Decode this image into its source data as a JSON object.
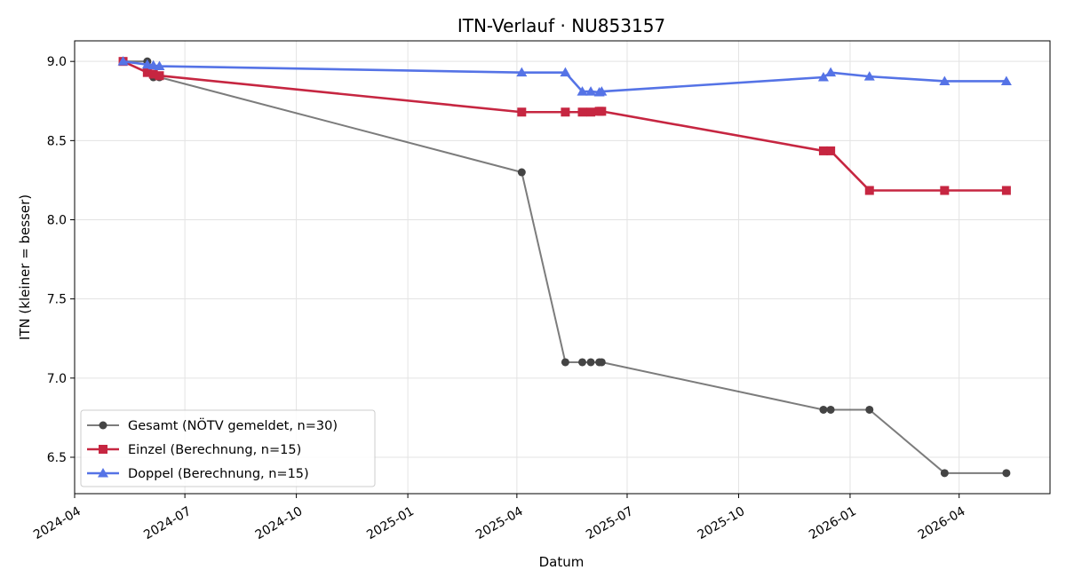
{
  "chart_data": {
    "type": "line",
    "title": "ITN-Verlauf · NU853157",
    "xlabel": "Datum",
    "ylabel": "ITN  (kleiner = besser)",
    "xlim": [
      "2024-04-01",
      "2026-06-15"
    ],
    "ylim": [
      6.27,
      9.13
    ],
    "x_ticks": [
      "2024-04",
      "2024-07",
      "2024-10",
      "2025-01",
      "2025-04",
      "2025-07",
      "2025-10",
      "2026-01",
      "2026-04"
    ],
    "y_ticks": [
      6.5,
      7.0,
      7.5,
      8.0,
      8.5,
      9.0
    ],
    "grid": true,
    "legend_position": "lower-left",
    "series": [
      {
        "name": "Gesamt (NÖTV gemeldet, n=30)",
        "color": "#444444",
        "marker": "circle",
        "points": [
          {
            "x": "2024-05-11",
            "y": 9.0
          },
          {
            "x": "2024-05-31",
            "y": 9.0
          },
          {
            "x": "2024-06-05",
            "y": 8.9
          },
          {
            "x": "2024-06-10",
            "y": 8.9
          },
          {
            "x": "2025-04-05",
            "y": 8.3
          },
          {
            "x": "2025-05-11",
            "y": 7.1
          },
          {
            "x": "2025-05-25",
            "y": 7.1
          },
          {
            "x": "2025-06-01",
            "y": 7.1
          },
          {
            "x": "2025-06-08",
            "y": 7.1
          },
          {
            "x": "2025-06-10",
            "y": 7.1
          },
          {
            "x": "2025-12-10",
            "y": 6.8
          },
          {
            "x": "2025-12-16",
            "y": 6.8
          },
          {
            "x": "2026-01-17",
            "y": 6.8
          },
          {
            "x": "2026-03-20",
            "y": 6.4
          },
          {
            "x": "2026-05-10",
            "y": 6.4
          }
        ]
      },
      {
        "name": "Einzel (Berechnung, n=15)",
        "color": "#c62641",
        "marker": "square",
        "points": [
          {
            "x": "2024-05-11",
            "y": 9.0
          },
          {
            "x": "2024-05-31",
            "y": 8.93
          },
          {
            "x": "2024-06-05",
            "y": 8.92
          },
          {
            "x": "2024-06-10",
            "y": 8.91
          },
          {
            "x": "2025-04-05",
            "y": 8.68
          },
          {
            "x": "2025-05-11",
            "y": 8.68
          },
          {
            "x": "2025-05-25",
            "y": 8.68
          },
          {
            "x": "2025-06-01",
            "y": 8.68
          },
          {
            "x": "2025-06-08",
            "y": 8.685
          },
          {
            "x": "2025-06-10",
            "y": 8.685
          },
          {
            "x": "2025-12-10",
            "y": 8.435
          },
          {
            "x": "2025-12-16",
            "y": 8.435
          },
          {
            "x": "2026-01-17",
            "y": 8.185
          },
          {
            "x": "2026-03-20",
            "y": 8.185
          },
          {
            "x": "2026-05-10",
            "y": 8.185
          }
        ]
      },
      {
        "name": "Doppel (Berechnung, n=15)",
        "color": "#5573e6",
        "marker": "triangle",
        "points": [
          {
            "x": "2024-05-11",
            "y": 9.0
          },
          {
            "x": "2024-05-31",
            "y": 8.98
          },
          {
            "x": "2024-06-05",
            "y": 8.975
          },
          {
            "x": "2024-06-10",
            "y": 8.97
          },
          {
            "x": "2025-04-05",
            "y": 8.93
          },
          {
            "x": "2025-05-11",
            "y": 8.93
          },
          {
            "x": "2025-05-25",
            "y": 8.81
          },
          {
            "x": "2025-06-01",
            "y": 8.81
          },
          {
            "x": "2025-06-08",
            "y": 8.805
          },
          {
            "x": "2025-06-10",
            "y": 8.81
          },
          {
            "x": "2025-12-10",
            "y": 8.9
          },
          {
            "x": "2025-12-16",
            "y": 8.93
          },
          {
            "x": "2026-01-17",
            "y": 8.905
          },
          {
            "x": "2026-03-20",
            "y": 8.875
          },
          {
            "x": "2026-05-10",
            "y": 8.875
          }
        ]
      }
    ]
  }
}
